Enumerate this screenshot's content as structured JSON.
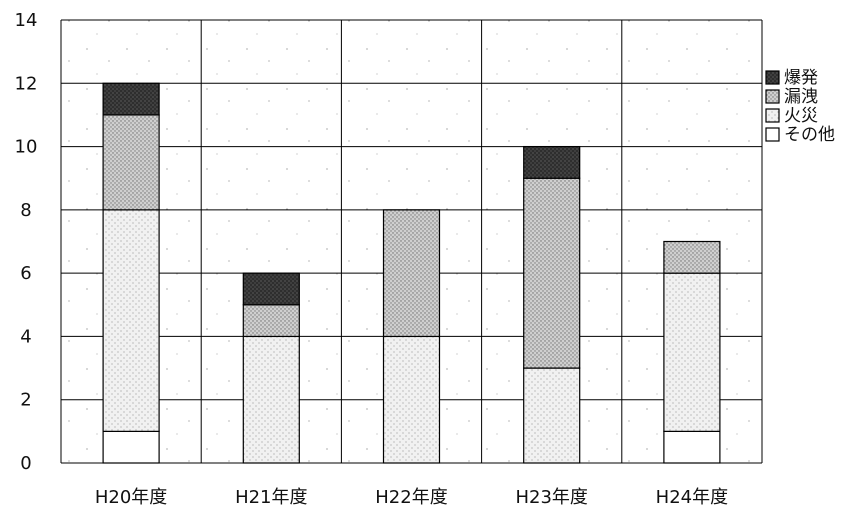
{
  "chart_data": {
    "type": "bar",
    "stacked": true,
    "categories": [
      "H20年度",
      "H21年度",
      "H22年度",
      "H23年度",
      "H24年度"
    ],
    "series": [
      {
        "name": "その他",
        "values": [
          1,
          0,
          0,
          0,
          1
        ]
      },
      {
        "name": "火災",
        "values": [
          7,
          4,
          4,
          3,
          5
        ]
      },
      {
        "name": "漏洩",
        "values": [
          3,
          1,
          4,
          6,
          1
        ]
      },
      {
        "name": "爆発",
        "values": [
          1,
          1,
          0,
          1,
          0
        ]
      }
    ],
    "legend_order": [
      "爆発",
      "漏洩",
      "火災",
      "その他"
    ],
    "ylim": [
      0,
      14
    ],
    "yticks": [
      0,
      2,
      4,
      6,
      8,
      10,
      12,
      14
    ],
    "grid": true,
    "legend_position": "right",
    "colors": {
      "その他": "#ffffff",
      "火災": "#e6e6e6",
      "漏洩": "#c4c4c4",
      "爆発": "#3a3a3a",
      "plot_background": "#ffffff",
      "gridline": "#000000"
    }
  }
}
